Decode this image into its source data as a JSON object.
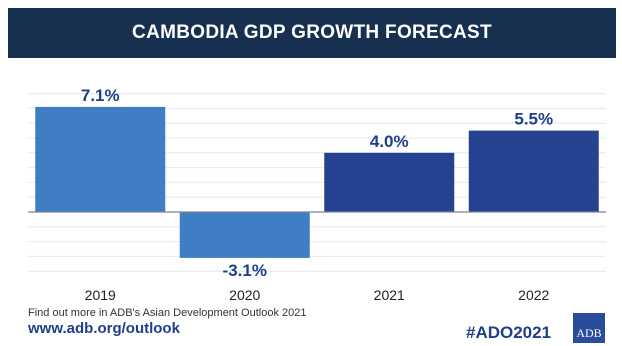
{
  "header": {
    "title": "CAMBODIA GDP GROWTH FORECAST"
  },
  "chart_data": {
    "type": "bar",
    "title": "CAMBODIA GDP GROWTH FORECAST",
    "categories": [
      "2019",
      "2020",
      "2021",
      "2022"
    ],
    "values": [
      7.1,
      -3.1,
      4.0,
      5.5
    ],
    "value_labels": [
      "7.1%",
      "-3.1%",
      "4.0%",
      "5.5%"
    ],
    "ylim": [
      -4,
      8
    ],
    "grid": true,
    "legend": "none",
    "colors": [
      "#3f7dc4",
      "#3f7dc4",
      "#24428f",
      "#24428f"
    ]
  },
  "footer": {
    "note": "Find out more in ADB's Asian Development Outlook 2021",
    "url": "www.adb.org/outlook",
    "hashtag": "#ADO2021",
    "logo_text": "ADB"
  }
}
